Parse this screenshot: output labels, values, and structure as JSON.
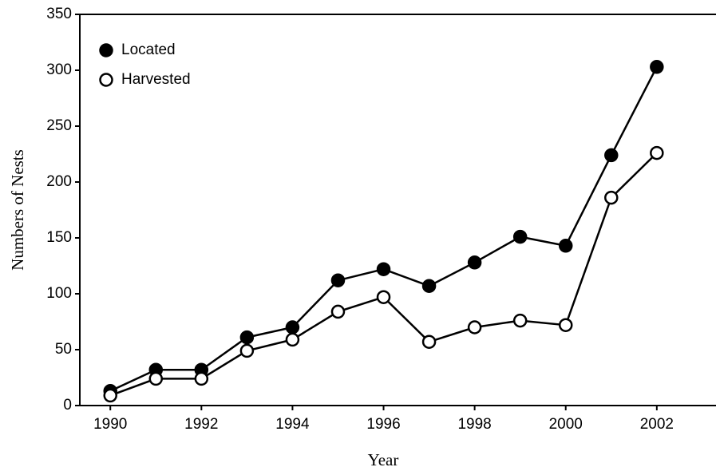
{
  "chart_data": {
    "type": "line",
    "x_label": "Year",
    "y_label": "Numbers of Nests",
    "x": [
      1990,
      1991,
      1992,
      1993,
      1994,
      1995,
      1996,
      1997,
      1998,
      1999,
      2000,
      2001,
      2002
    ],
    "series": [
      {
        "name": "Located",
        "color": "#000000",
        "marker_fill": "#000000",
        "values": [
          13,
          32,
          32,
          61,
          70,
          112,
          122,
          107,
          128,
          151,
          143,
          224,
          303
        ]
      },
      {
        "name": "Harvested",
        "color": "#000000",
        "marker_fill": "#ffffff",
        "values": [
          9,
          24,
          24,
          49,
          59,
          84,
          97,
          57,
          70,
          76,
          72,
          186,
          226
        ]
      }
    ],
    "xlim": [
      1989.33,
      2003.3
    ],
    "xticks": [
      1990,
      1992,
      1994,
      1996,
      1998,
      2000,
      2002
    ],
    "ylim": [
      0,
      350
    ],
    "yticks": [
      0,
      50,
      100,
      150,
      200,
      250,
      300,
      350
    ],
    "legend": "top-left",
    "grid": false
  }
}
